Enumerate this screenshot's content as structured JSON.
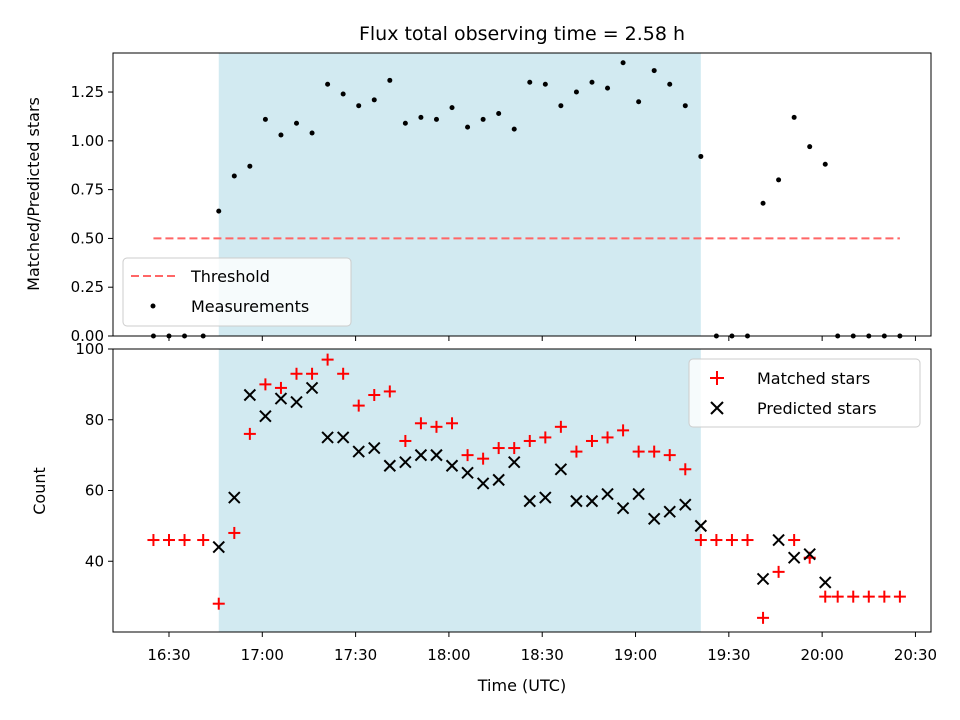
{
  "chart_data": [
    {
      "type": "scatter",
      "title": "Flux total observing time = 2.58 h",
      "ylabel": "Matched/Predicted stars",
      "ylim": [
        0,
        1.45
      ],
      "yticks": [
        "0.00",
        "0.25",
        "0.50",
        "0.75",
        "1.00",
        "1.25"
      ],
      "shaded_region": {
        "from": "16:46",
        "to": "19:21",
        "color": "#add8e6"
      },
      "threshold": {
        "name": "Threshold",
        "value": 0.5,
        "from": "16:25",
        "to": "20:25",
        "color": "#ff6666",
        "style": "dashed"
      },
      "legend": {
        "placement": "lower-left",
        "entries": [
          "Threshold",
          "Measurements"
        ]
      },
      "series": [
        {
          "name": "Measurements",
          "color": "#000000",
          "marker": "dot",
          "points": [
            [
              "16:25",
              0.0
            ],
            [
              "16:30",
              0.0
            ],
            [
              "16:35",
              0.0
            ],
            [
              "16:41",
              0.0
            ],
            [
              "16:46",
              0.64
            ],
            [
              "16:51",
              0.82
            ],
            [
              "16:56",
              0.87
            ],
            [
              "17:01",
              1.11
            ],
            [
              "17:06",
              1.03
            ],
            [
              "17:11",
              1.09
            ],
            [
              "17:16",
              1.04
            ],
            [
              "17:21",
              1.29
            ],
            [
              "17:26",
              1.24
            ],
            [
              "17:31",
              1.18
            ],
            [
              "17:36",
              1.21
            ],
            [
              "17:41",
              1.31
            ],
            [
              "17:46",
              1.09
            ],
            [
              "17:51",
              1.12
            ],
            [
              "17:56",
              1.11
            ],
            [
              "18:01",
              1.17
            ],
            [
              "18:06",
              1.07
            ],
            [
              "18:11",
              1.11
            ],
            [
              "18:16",
              1.14
            ],
            [
              "18:21",
              1.06
            ],
            [
              "18:26",
              1.3
            ],
            [
              "18:31",
              1.29
            ],
            [
              "18:36",
              1.18
            ],
            [
              "18:41",
              1.25
            ],
            [
              "18:46",
              1.3
            ],
            [
              "18:51",
              1.27
            ],
            [
              "18:56",
              1.4
            ],
            [
              "19:01",
              1.2
            ],
            [
              "19:06",
              1.36
            ],
            [
              "19:11",
              1.29
            ],
            [
              "19:16",
              1.18
            ],
            [
              "19:21",
              0.92
            ],
            [
              "19:26",
              0.0
            ],
            [
              "19:31",
              0.0
            ],
            [
              "19:36",
              0.0
            ],
            [
              "19:41",
              0.68
            ],
            [
              "19:46",
              0.8
            ],
            [
              "19:51",
              1.12
            ],
            [
              "19:56",
              0.97
            ],
            [
              "20:01",
              0.88
            ],
            [
              "20:05",
              0.0
            ],
            [
              "20:10",
              0.0
            ],
            [
              "20:15",
              0.0
            ],
            [
              "20:20",
              0.0
            ],
            [
              "20:25",
              0.0
            ]
          ]
        }
      ]
    },
    {
      "type": "scatter",
      "xlabel": "Time (UTC)",
      "ylabel": "Count",
      "ylim": [
        20,
        100
      ],
      "yticks": [
        "40",
        "60",
        "80",
        "100"
      ],
      "xticks": [
        "16:30",
        "17:00",
        "17:30",
        "18:00",
        "18:30",
        "19:00",
        "19:30",
        "20:00",
        "20:30"
      ],
      "xlim": [
        "16:12",
        "20:35"
      ],
      "shaded_region": {
        "from": "16:46",
        "to": "19:21",
        "color": "#add8e6"
      },
      "legend": {
        "placement": "top-right",
        "entries": [
          "Matched stars",
          "Predicted stars"
        ]
      },
      "series": [
        {
          "name": "Matched stars",
          "color": "#ff0000",
          "marker": "plus",
          "points": [
            [
              "16:25",
              46
            ],
            [
              "16:30",
              46
            ],
            [
              "16:35",
              46
            ],
            [
              "16:41",
              46
            ],
            [
              "16:46",
              28
            ],
            [
              "16:51",
              48
            ],
            [
              "16:56",
              76
            ],
            [
              "17:01",
              90
            ],
            [
              "17:06",
              89
            ],
            [
              "17:11",
              93
            ],
            [
              "17:16",
              93
            ],
            [
              "17:21",
              97
            ],
            [
              "17:26",
              93
            ],
            [
              "17:31",
              84
            ],
            [
              "17:36",
              87
            ],
            [
              "17:41",
              88
            ],
            [
              "17:46",
              74
            ],
            [
              "17:51",
              79
            ],
            [
              "17:56",
              78
            ],
            [
              "18:01",
              79
            ],
            [
              "18:06",
              70
            ],
            [
              "18:11",
              69
            ],
            [
              "18:16",
              72
            ],
            [
              "18:21",
              72
            ],
            [
              "18:26",
              74
            ],
            [
              "18:31",
              75
            ],
            [
              "18:36",
              78
            ],
            [
              "18:41",
              71
            ],
            [
              "18:46",
              74
            ],
            [
              "18:51",
              75
            ],
            [
              "18:56",
              77
            ],
            [
              "19:01",
              71
            ],
            [
              "19:06",
              71
            ],
            [
              "19:11",
              70
            ],
            [
              "19:16",
              66
            ],
            [
              "19:21",
              46
            ],
            [
              "19:26",
              46
            ],
            [
              "19:31",
              46
            ],
            [
              "19:36",
              46
            ],
            [
              "19:41",
              24
            ],
            [
              "19:46",
              37
            ],
            [
              "19:51",
              46
            ],
            [
              "19:56",
              41
            ],
            [
              "20:01",
              30
            ],
            [
              "20:05",
              30
            ],
            [
              "20:10",
              30
            ],
            [
              "20:15",
              30
            ],
            [
              "20:20",
              30
            ],
            [
              "20:25",
              30
            ]
          ]
        },
        {
          "name": "Predicted stars",
          "color": "#000000",
          "marker": "x",
          "points": [
            [
              "16:46",
              44
            ],
            [
              "16:51",
              58
            ],
            [
              "16:56",
              87
            ],
            [
              "17:01",
              81
            ],
            [
              "17:06",
              86
            ],
            [
              "17:11",
              85
            ],
            [
              "17:16",
              89
            ],
            [
              "17:21",
              75
            ],
            [
              "17:26",
              75
            ],
            [
              "17:31",
              71
            ],
            [
              "17:36",
              72
            ],
            [
              "17:41",
              67
            ],
            [
              "17:46",
              68
            ],
            [
              "17:51",
              70
            ],
            [
              "17:56",
              70
            ],
            [
              "18:01",
              67
            ],
            [
              "18:06",
              65
            ],
            [
              "18:11",
              62
            ],
            [
              "18:16",
              63
            ],
            [
              "18:21",
              68
            ],
            [
              "18:26",
              57
            ],
            [
              "18:31",
              58
            ],
            [
              "18:36",
              66
            ],
            [
              "18:41",
              57
            ],
            [
              "18:46",
              57
            ],
            [
              "18:51",
              59
            ],
            [
              "18:56",
              55
            ],
            [
              "19:01",
              59
            ],
            [
              "19:06",
              52
            ],
            [
              "19:11",
              54
            ],
            [
              "19:16",
              56
            ],
            [
              "19:21",
              50
            ],
            [
              "19:41",
              35
            ],
            [
              "19:46",
              46
            ],
            [
              "19:51",
              41
            ],
            [
              "19:56",
              42
            ],
            [
              "20:01",
              34
            ]
          ]
        }
      ]
    }
  ]
}
